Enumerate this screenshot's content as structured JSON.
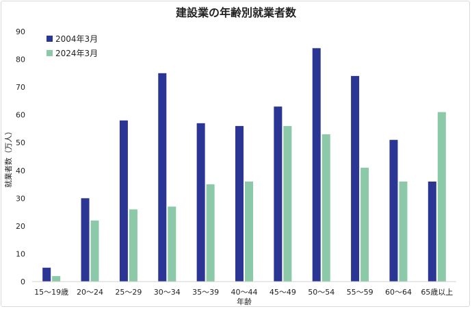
{
  "chart_data": {
    "type": "bar",
    "title": "建設業の年齢別就業者数",
    "xlabel": "年齢",
    "ylabel": "就業者数（万人）",
    "ylim": [
      0,
      90
    ],
    "yticks": [
      "0",
      "10",
      "20",
      "30",
      "40",
      "50",
      "60",
      "70",
      "80",
      "90"
    ],
    "grid": false,
    "legend_position": "top-left",
    "categories": [
      "15～19歳",
      "20～24",
      "25～29",
      "30～34",
      "35～39",
      "40～44",
      "45～49",
      "50～54",
      "55～59",
      "60～64",
      "65歳以上"
    ],
    "series": [
      {
        "name": "2004年3月",
        "color": "#2b3593",
        "values": [
          5,
          30,
          58,
          75,
          57,
          56,
          63,
          84,
          74,
          51,
          36
        ]
      },
      {
        "name": "2024年3月",
        "color": "#8cc9a8",
        "values": [
          2,
          22,
          26,
          27,
          35,
          36,
          56,
          53,
          41,
          36,
          61
        ]
      }
    ]
  }
}
